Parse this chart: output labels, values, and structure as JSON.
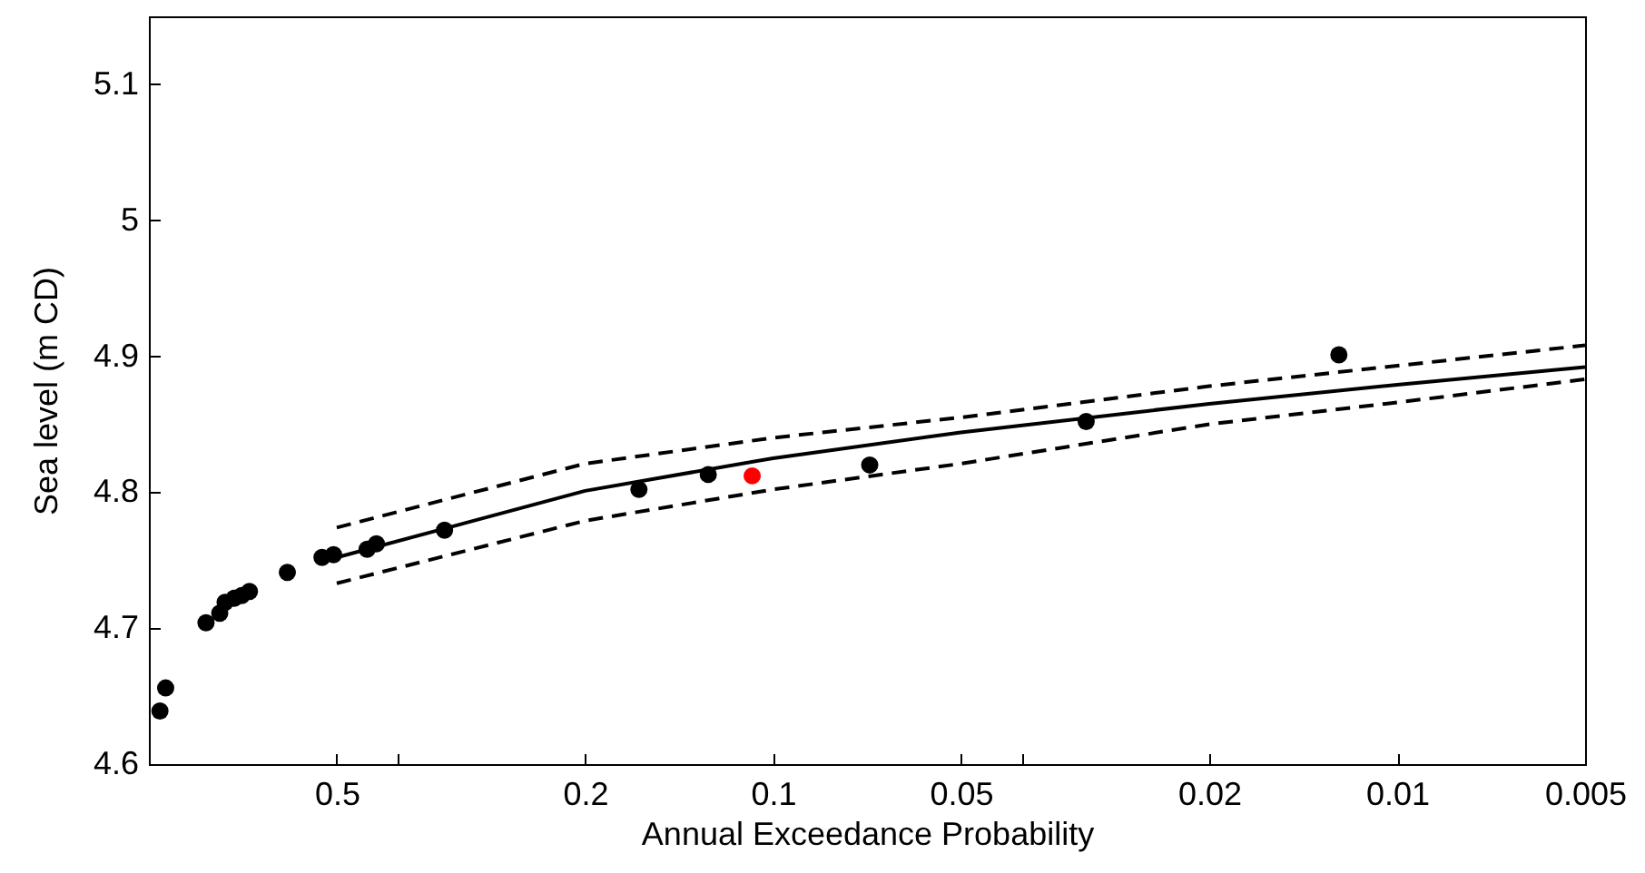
{
  "chart_data": {
    "type": "scatter",
    "xlabel": "Annual Exceedance Probability",
    "ylabel": "Sea level (m CD)",
    "log": "x",
    "marker": "circle",
    "xlim": [
      1,
      0.005
    ],
    "xticks": [
      0.5,
      {
        "value": 0.4,
        "label": null
      },
      0.2,
      0.1,
      0.05,
      {
        "value": 0.04,
        "label": null
      },
      0.02,
      0.01,
      0.005
    ],
    "ylim": [
      4.6,
      5.15
    ],
    "yticks": [
      4.6,
      4.7,
      4.8,
      4.9,
      5,
      5.1
    ],
    "series": [
      {
        "type": "line",
        "line_style": "solid",
        "marker": "none",
        "color": "#000000",
        "x": [
          0.5,
          0.2,
          0.1,
          0.05,
          0.02,
          0.01,
          0.005
        ],
        "values": [
          4.752,
          4.801,
          4.825,
          4.844,
          4.865,
          4.879,
          4.892
        ]
      },
      {
        "type": "line",
        "line_style": "dashed",
        "marker": "none",
        "color": "#000000",
        "x": [
          0.5,
          0.2,
          0.1,
          0.05,
          0.02,
          0.01,
          0.005
        ],
        "values": [
          4.774,
          4.821,
          4.84,
          4.855,
          4.878,
          4.893,
          4.908
        ]
      },
      {
        "type": "line",
        "line_style": "dashed",
        "marker": "none",
        "color": "#000000",
        "x": [
          0.5,
          0.2,
          0.1,
          0.05,
          0.02,
          0.01,
          0.005
        ],
        "values": [
          4.733,
          4.779,
          4.802,
          4.821,
          4.85,
          4.866,
          4.883
        ]
      },
      {
        "color": "#000000",
        "x": [
          0.96,
          0.94,
          0.81,
          0.77,
          0.755,
          0.73,
          0.71,
          0.69,
          0.6,
          0.528,
          0.506,
          0.447,
          0.432,
          0.336,
          0.164,
          0.127,
          0.07,
          0.0315,
          0.0124
        ],
        "values": [
          4.639,
          4.656,
          4.704,
          4.711,
          4.719,
          4.722,
          4.724,
          4.727,
          4.741,
          4.752,
          4.754,
          4.758,
          4.762,
          4.772,
          4.802,
          4.813,
          4.82,
          4.852,
          4.901
        ]
      },
      {
        "color": "#ff0000",
        "x": [
          0.108
        ],
        "values": [
          4.812
        ]
      }
    ]
  }
}
